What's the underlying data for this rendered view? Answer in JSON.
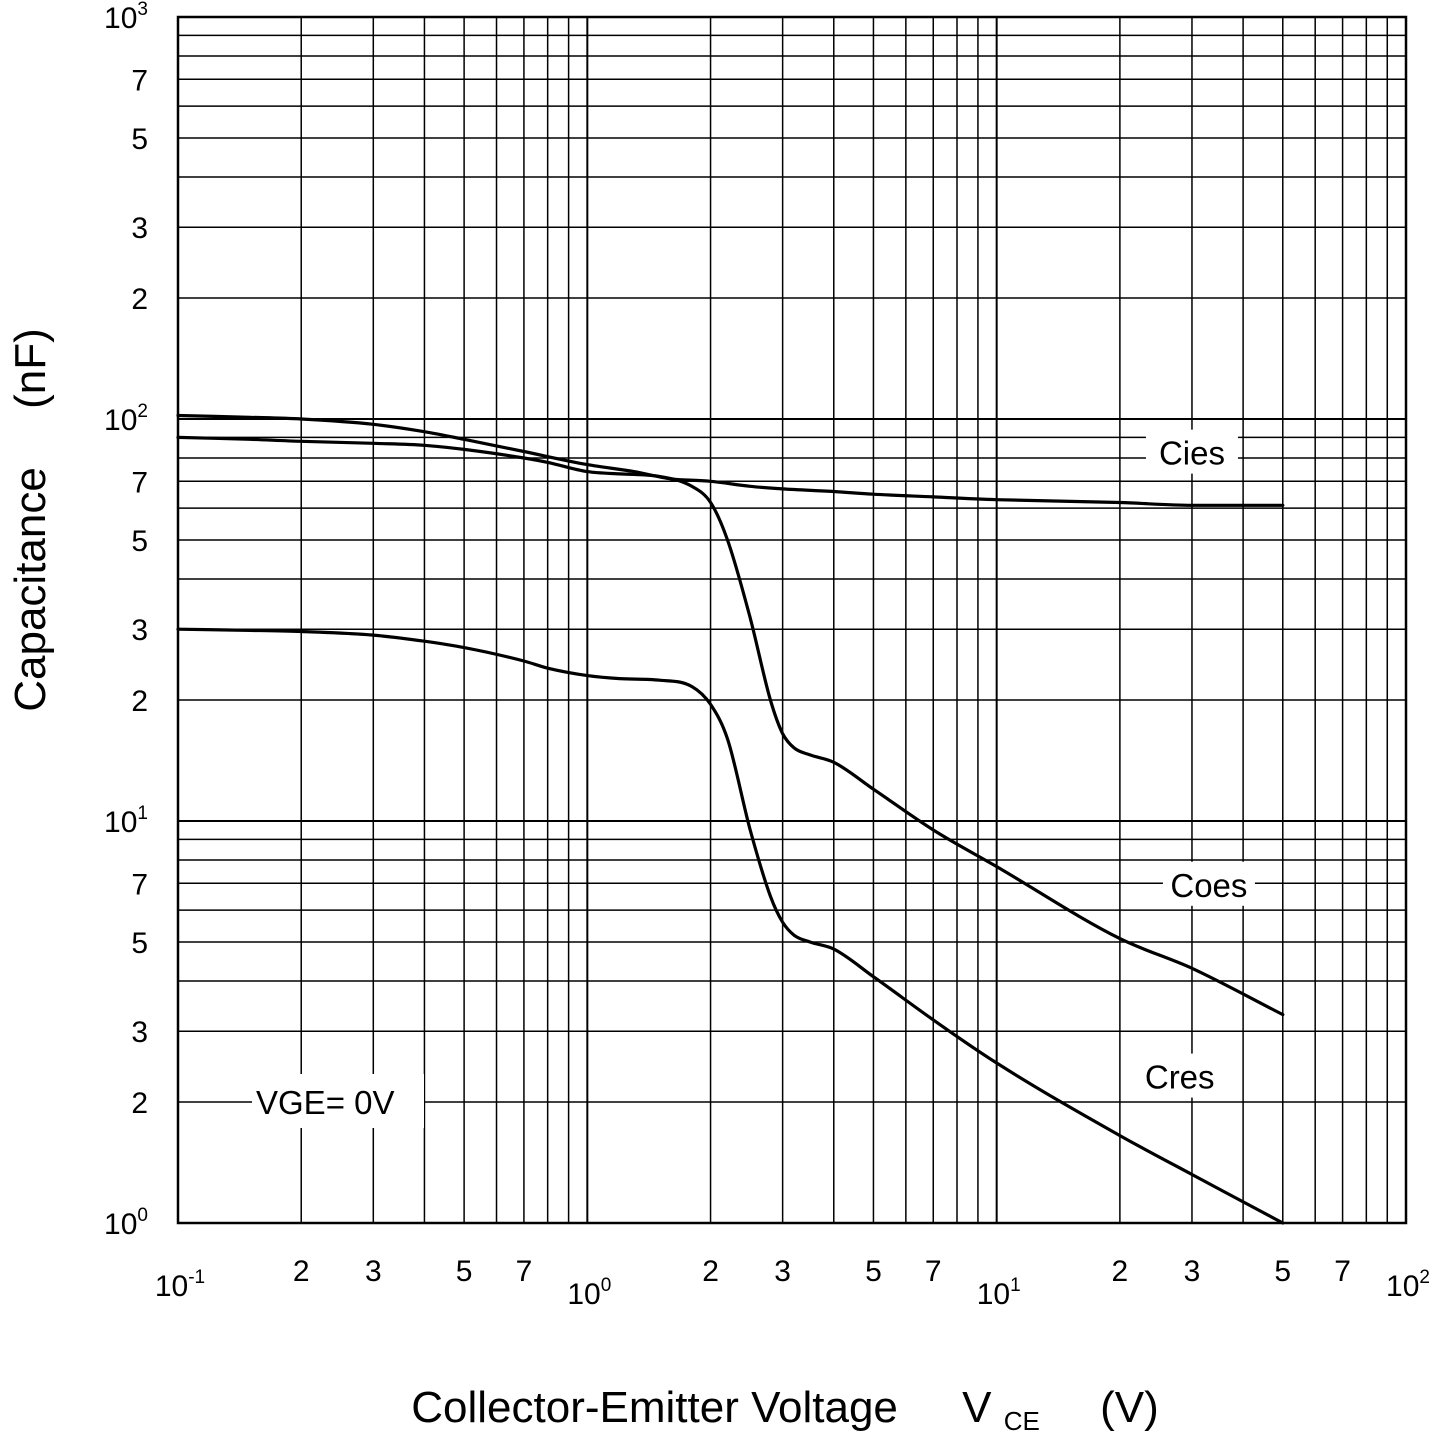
{
  "chart_data": {
    "type": "line",
    "x_scale": "log",
    "y_scale": "log",
    "xlim": [
      0.1,
      100
    ],
    "ylim": [
      1,
      1000
    ],
    "grid": true,
    "x_major_ticks": [
      {
        "value": 0.1,
        "base": "10",
        "exp": "-1"
      },
      {
        "value": 1,
        "base": "10",
        "exp": "0"
      },
      {
        "value": 10,
        "base": "10",
        "exp": "1"
      },
      {
        "value": 100,
        "base": "10",
        "exp": "2"
      }
    ],
    "x_minor_labels": [
      {
        "value": 0.2,
        "label": "2"
      },
      {
        "value": 0.3,
        "label": "3"
      },
      {
        "value": 0.5,
        "label": "5"
      },
      {
        "value": 0.7,
        "label": "7"
      },
      {
        "value": 2,
        "label": "2"
      },
      {
        "value": 3,
        "label": "3"
      },
      {
        "value": 5,
        "label": "5"
      },
      {
        "value": 7,
        "label": "7"
      },
      {
        "value": 20,
        "label": "2"
      },
      {
        "value": 30,
        "label": "3"
      },
      {
        "value": 50,
        "label": "5"
      },
      {
        "value": 70,
        "label": "7"
      }
    ],
    "y_major_ticks": [
      {
        "value": 1,
        "base": "10",
        "exp": "0"
      },
      {
        "value": 10,
        "base": "10",
        "exp": "1"
      },
      {
        "value": 100,
        "base": "10",
        "exp": "2"
      },
      {
        "value": 1000,
        "base": "10",
        "exp": "3"
      }
    ],
    "y_minor_labels": [
      {
        "value": 2,
        "label": "2"
      },
      {
        "value": 3,
        "label": "3"
      },
      {
        "value": 5,
        "label": "5"
      },
      {
        "value": 7,
        "label": "7"
      },
      {
        "value": 20,
        "label": "2"
      },
      {
        "value": 30,
        "label": "3"
      },
      {
        "value": 50,
        "label": "5"
      },
      {
        "value": 70,
        "label": "7"
      },
      {
        "value": 200,
        "label": "2"
      },
      {
        "value": 300,
        "label": "3"
      },
      {
        "value": 500,
        "label": "5"
      },
      {
        "value": 700,
        "label": "7"
      }
    ],
    "xlabel": {
      "main": "Collector-Emitter Voltage",
      "symbol": "V",
      "subscript": "CE",
      "unit": "(V)"
    },
    "ylabel": {
      "main": "Capacitance",
      "unit": "(nF)"
    },
    "condition_label": "VGE= 0V",
    "series": [
      {
        "name": "Cies",
        "x": [
          0.1,
          0.15,
          0.2,
          0.3,
          0.4,
          0.5,
          0.7,
          1.0,
          1.3,
          1.6,
          2.0,
          2.5,
          3.0,
          4.0,
          5.0,
          7.0,
          10,
          20,
          30,
          50
        ],
        "y": [
          102,
          101,
          100,
          97,
          93,
          89,
          83,
          77,
          74,
          71,
          70,
          68,
          67,
          66,
          65,
          64,
          63,
          62,
          61,
          61
        ]
      },
      {
        "name": "Coes",
        "x": [
          0.1,
          0.15,
          0.2,
          0.3,
          0.4,
          0.5,
          0.7,
          0.8,
          1.0,
          1.2,
          1.5,
          1.8,
          2.0,
          2.2,
          2.5,
          2.8,
          3.0,
          3.2,
          3.5,
          4.0,
          5.0,
          7.0,
          10,
          20,
          30,
          50
        ],
        "y": [
          90,
          89,
          88,
          87,
          86,
          84,
          80,
          78,
          74,
          73,
          72,
          68,
          62,
          50,
          32,
          20,
          16.5,
          15.2,
          14.6,
          14,
          12,
          9.5,
          7.7,
          5.1,
          4.3,
          3.3
        ]
      },
      {
        "name": "Cres",
        "x": [
          0.1,
          0.15,
          0.2,
          0.3,
          0.4,
          0.5,
          0.7,
          0.8,
          1.0,
          1.2,
          1.5,
          1.8,
          2.0,
          2.2,
          2.5,
          2.8,
          3.0,
          3.2,
          3.5,
          4.0,
          5.0,
          7.0,
          10,
          20,
          30,
          50
        ],
        "y": [
          30,
          29.8,
          29.6,
          29,
          28,
          27,
          25,
          24,
          23,
          22.6,
          22.4,
          21.6,
          19.5,
          16,
          9.5,
          6.5,
          5.6,
          5.2,
          5.0,
          4.8,
          4.1,
          3.2,
          2.5,
          1.65,
          1.32,
          1.0
        ]
      }
    ],
    "annotations": [
      {
        "text": "Cies",
        "x": 30,
        "y": 82
      },
      {
        "text": "Coes",
        "x": 33,
        "y": 6.9
      },
      {
        "text": "Cres",
        "x": 28,
        "y": 2.3
      }
    ]
  }
}
